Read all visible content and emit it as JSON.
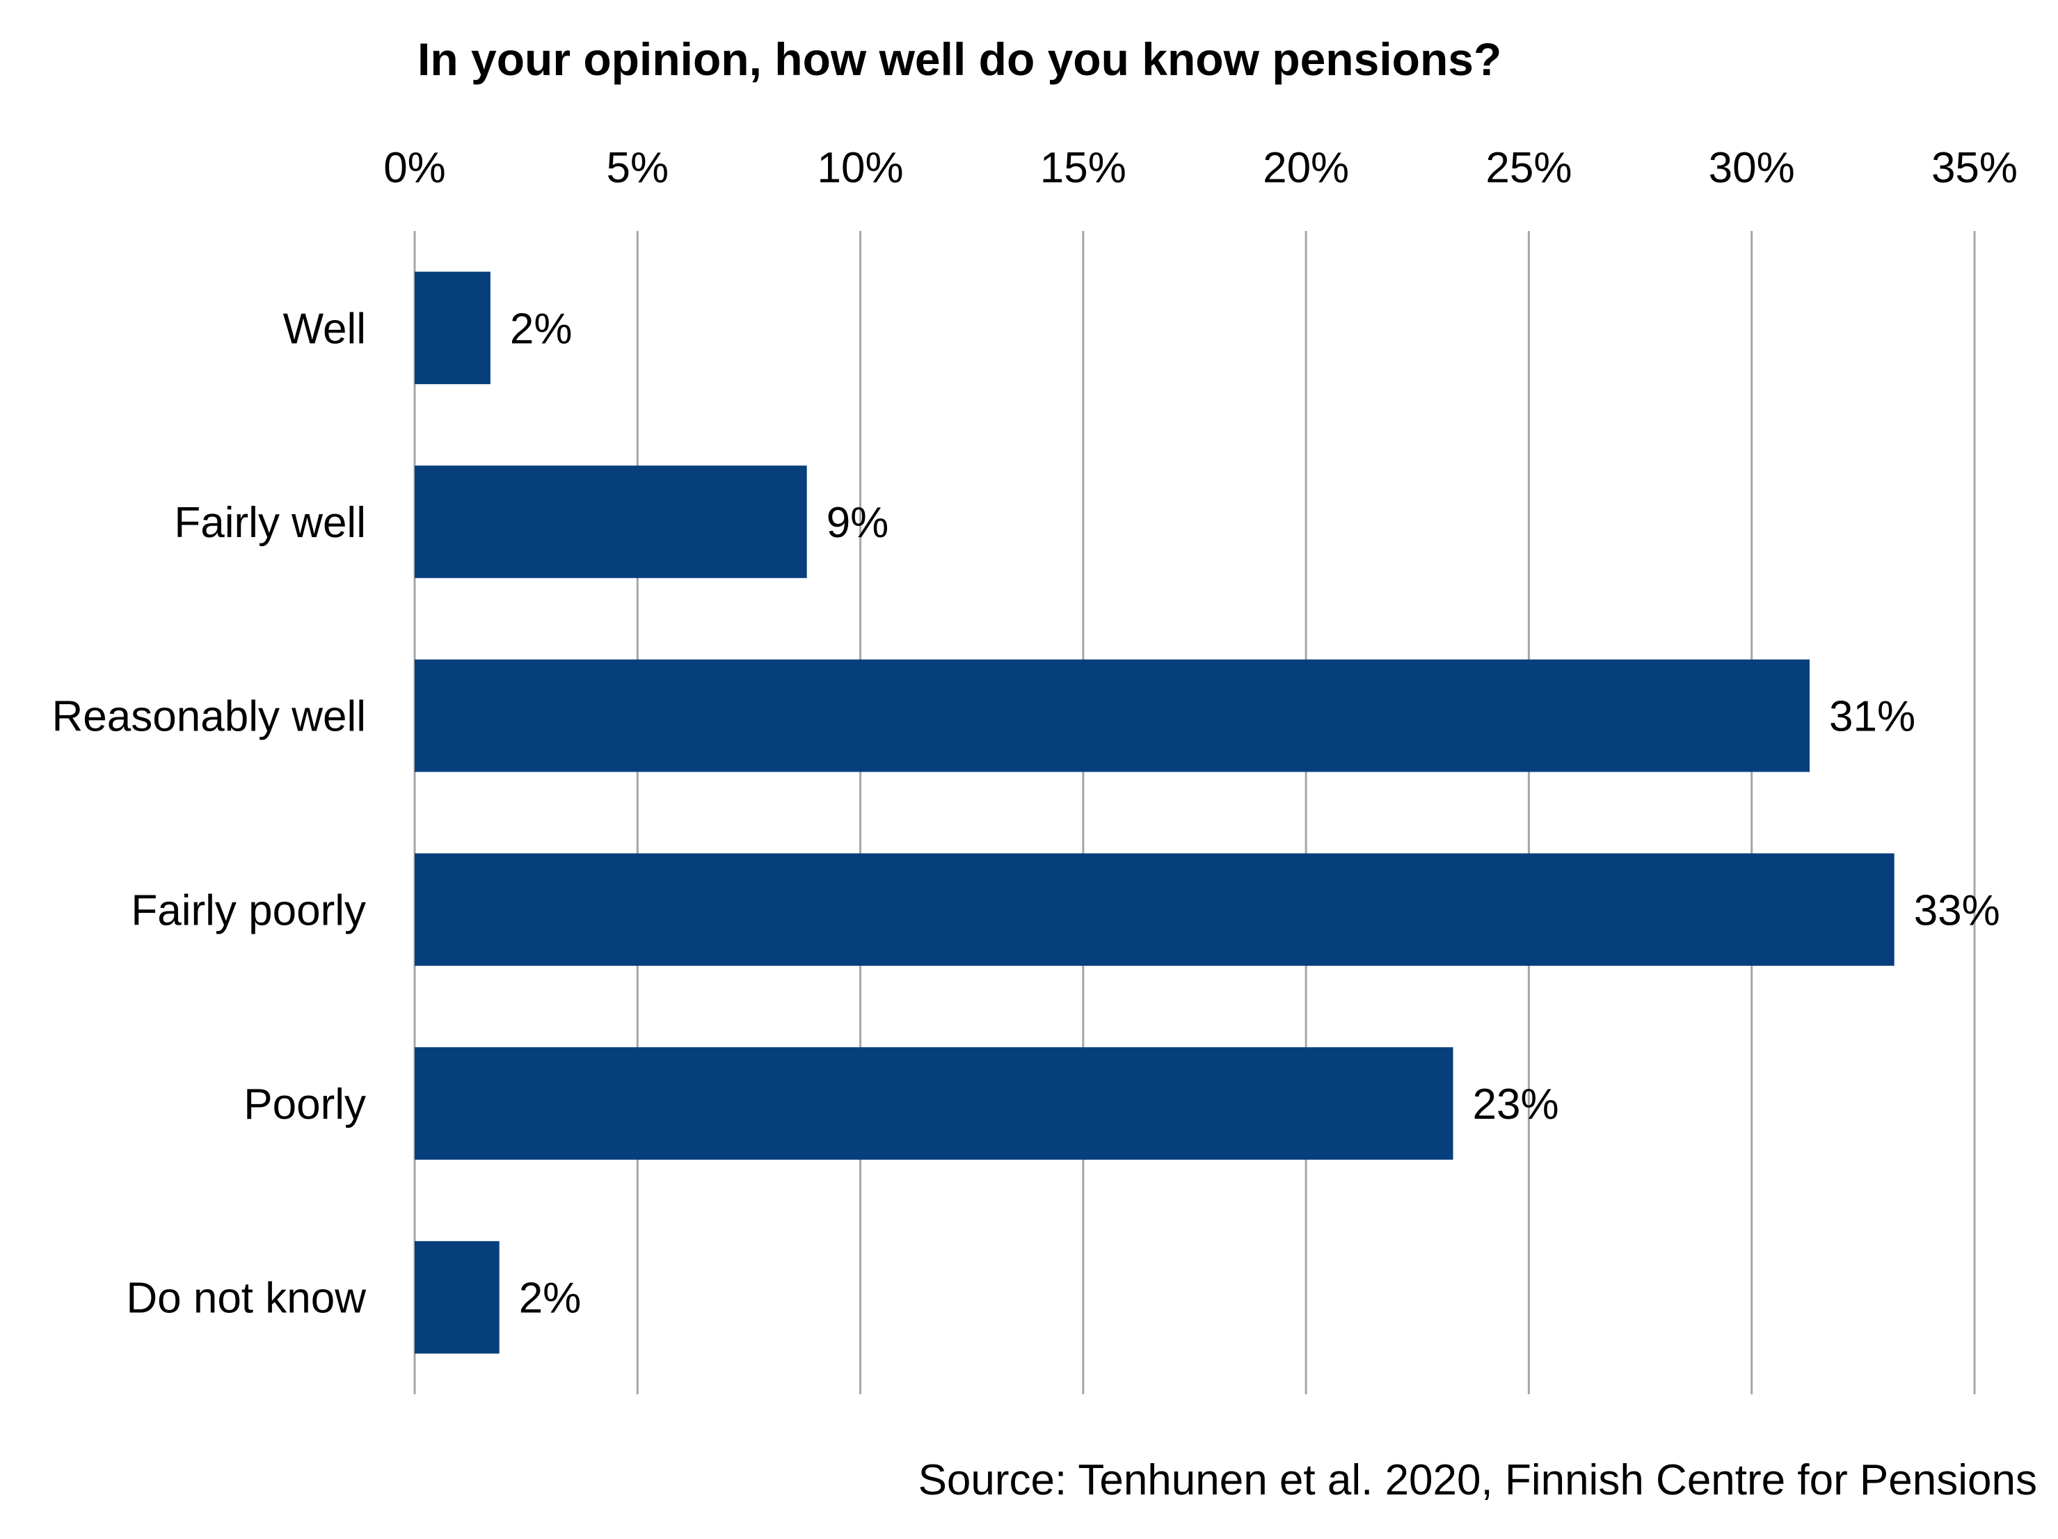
{
  "chart_data": {
    "type": "bar",
    "orientation": "horizontal",
    "title": "In your opinion, how well do you know pensions?",
    "categories": [
      "Well",
      "Fairly well",
      "Reasonably well",
      "Fairly poorly",
      "Poorly",
      "Do not know"
    ],
    "values": [
      1.7,
      8.8,
      31.3,
      33.2,
      23.3,
      1.9
    ],
    "data_labels": [
      "2%",
      "9%",
      "31%",
      "33%",
      "23%",
      "2%"
    ],
    "xlim": [
      0,
      35
    ],
    "x_ticks": [
      0,
      5,
      10,
      15,
      20,
      25,
      30,
      35
    ],
    "x_tick_labels": [
      "0%",
      "5%",
      "10%",
      "15%",
      "20%",
      "25%",
      "30%",
      "35%"
    ],
    "x_axis_position": "top",
    "grid": true,
    "legend": "none",
    "bar_color": "#063f7c",
    "gridline_color": "#a6a6a6",
    "source": "Source: Tenhunen et al. 2020, Finnish Centre for Pensions"
  }
}
